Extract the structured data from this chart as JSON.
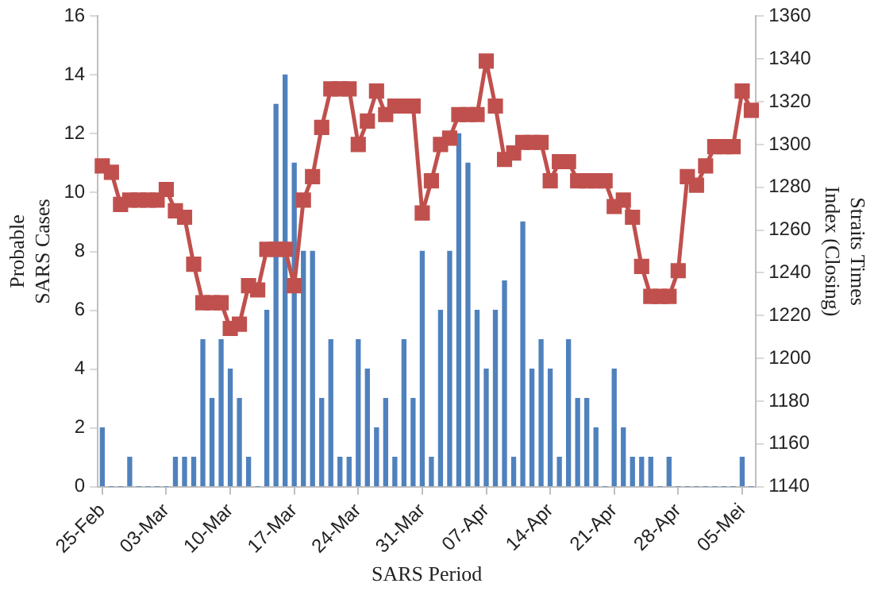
{
  "chart_data": {
    "type": "bar",
    "xlabel": "SARS Period",
    "ylabel": "Probable\nSARS Cases",
    "y2label": "Straits Times\nIndex (Closing)",
    "categories": [
      "25-Feb",
      null,
      null,
      null,
      null,
      null,
      null,
      "03-Mar",
      null,
      null,
      null,
      null,
      null,
      null,
      "10-Mar",
      null,
      null,
      null,
      null,
      null,
      null,
      "17-Mar",
      null,
      null,
      null,
      null,
      null,
      null,
      "24-Mar",
      null,
      null,
      null,
      null,
      null,
      null,
      "31-Mar",
      null,
      null,
      null,
      null,
      null,
      null,
      "07-Apr",
      null,
      null,
      null,
      null,
      null,
      null,
      "14-Apr",
      null,
      null,
      null,
      null,
      null,
      null,
      "21-Apr",
      null,
      null,
      null,
      null,
      null,
      null,
      "28-Apr",
      null,
      null,
      null,
      null,
      null,
      null,
      "05-Mei",
      null
    ],
    "series": [
      {
        "color": "#4f81bd",
        "values": [
          2,
          0,
          0,
          1,
          0,
          0,
          0,
          0,
          1,
          1,
          1,
          5,
          3,
          5,
          4,
          3,
          1,
          0,
          6,
          13,
          14,
          11,
          8,
          8,
          3,
          5,
          1,
          1,
          5,
          4,
          2,
          3,
          1,
          5,
          3,
          8,
          1,
          6,
          8,
          12,
          11,
          6,
          4,
          6,
          7,
          1,
          9,
          4,
          5,
          4,
          1,
          5,
          3,
          3,
          2,
          0,
          4,
          2,
          1,
          1,
          1,
          0,
          1,
          0,
          0,
          0,
          0,
          0,
          0,
          0,
          1,
          0
        ]
      },
      {
        "type": "line",
        "axis": "y2",
        "color": "#c0504d",
        "values": [
          1290,
          1287,
          1272,
          1274,
          1274,
          1274,
          1274,
          1279,
          1269,
          1266,
          1244,
          1226,
          1226,
          1226,
          1214,
          1216,
          1234,
          1232,
          1251,
          1251,
          1251,
          1234,
          1274,
          1285,
          1308,
          1326,
          1326,
          1326,
          1300,
          1311,
          1325,
          1314,
          1318,
          1318,
          1318,
          1268,
          1283,
          1300,
          1303,
          1314,
          1314,
          1314,
          1339,
          1318,
          1293,
          1296,
          1301,
          1301,
          1301,
          1283,
          1292,
          1292,
          1283,
          1283,
          1283,
          1283,
          1271,
          1274,
          1266,
          1243,
          1229,
          1229,
          1229,
          1241,
          1285,
          1281,
          1290,
          1299,
          1299,
          1299,
          1325,
          1316
        ]
      }
    ],
    "ylim": [
      0,
      16
    ],
    "yticks": [
      0,
      2,
      4,
      6,
      8,
      10,
      12,
      14,
      16
    ],
    "y2lim": [
      1140,
      1360
    ],
    "y2ticks": [
      1140,
      1160,
      1180,
      1200,
      1220,
      1240,
      1260,
      1280,
      1300,
      1320,
      1340,
      1360
    ],
    "grid": false,
    "legend": false,
    "marker": "square",
    "line_style": "solid"
  }
}
